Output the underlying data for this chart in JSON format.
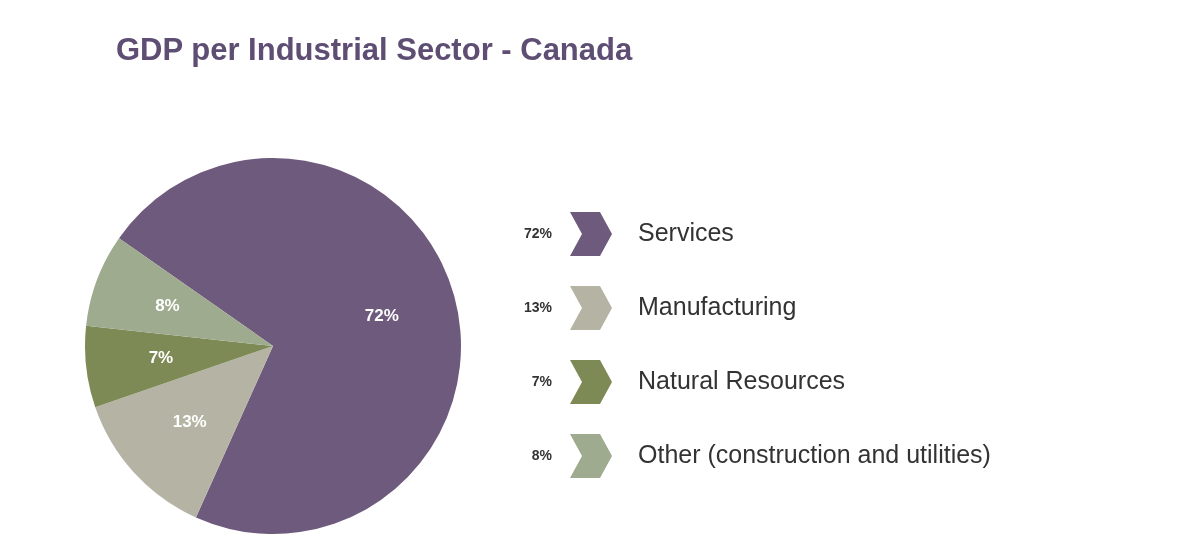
{
  "chart_data": {
    "type": "pie",
    "title": "GDP per Industrial Sector - Canada",
    "categories": [
      "Services",
      "Manufacturing",
      "Natural Resources",
      "Other (construction and utilities)"
    ],
    "values": [
      72,
      13,
      7,
      8
    ],
    "colors": [
      "#6e5a7c",
      "#b5b4a4",
      "#7e8a55",
      "#9eab8e"
    ],
    "value_labels": [
      "72%",
      "13%",
      "7%",
      "8%"
    ],
    "legend": "right"
  }
}
